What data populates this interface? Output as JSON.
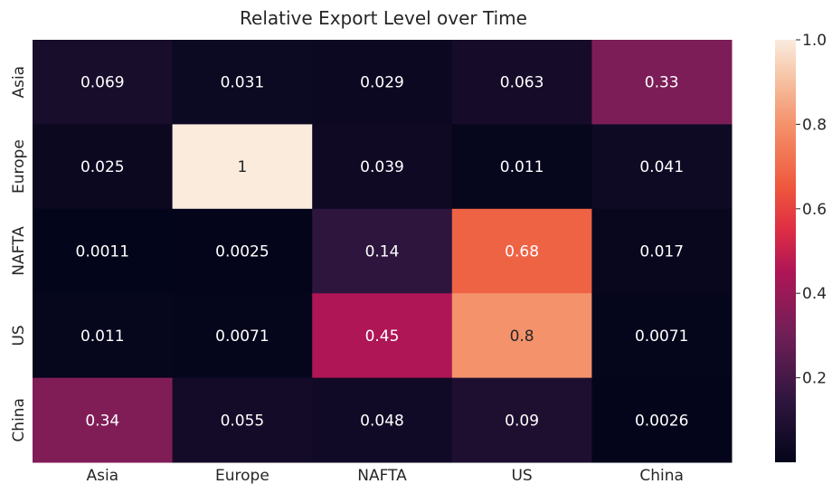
{
  "chart_data": {
    "type": "heatmap",
    "title": "Relative Export Level over Time",
    "xlabel": "",
    "ylabel": "",
    "x_categories": [
      "Asia",
      "Europe",
      "NAFTA",
      "US",
      "China"
    ],
    "y_categories": [
      "Asia",
      "Europe",
      "NAFTA",
      "US",
      "China"
    ],
    "values": [
      [
        0.069,
        0.031,
        0.029,
        0.063,
        0.33
      ],
      [
        0.025,
        1,
        0.039,
        0.011,
        0.041
      ],
      [
        0.0011,
        0.0025,
        0.14,
        0.68,
        0.017
      ],
      [
        0.011,
        0.0071,
        0.45,
        0.8,
        0.0071
      ],
      [
        0.34,
        0.055,
        0.048,
        0.09,
        0.0026
      ]
    ],
    "cell_labels": [
      [
        "0.069",
        "0.031",
        "0.029",
        "0.063",
        "0.33"
      ],
      [
        "0.025",
        "1",
        "0.039",
        "0.011",
        "0.041"
      ],
      [
        "0.0011",
        "0.0025",
        "0.14",
        "0.68",
        "0.017"
      ],
      [
        "0.011",
        "0.0071",
        "0.45",
        "0.8",
        "0.0071"
      ],
      [
        "0.34",
        "0.055",
        "0.048",
        "0.09",
        "0.0026"
      ]
    ],
    "colorbar": {
      "range": [
        0,
        1
      ],
      "ticks": [
        0.2,
        0.4,
        0.6,
        0.8,
        1.0
      ],
      "tick_labels": [
        "0.2",
        "0.4",
        "0.6",
        "0.8",
        "1.0"
      ]
    },
    "colormap": "rocket",
    "grid": false
  }
}
